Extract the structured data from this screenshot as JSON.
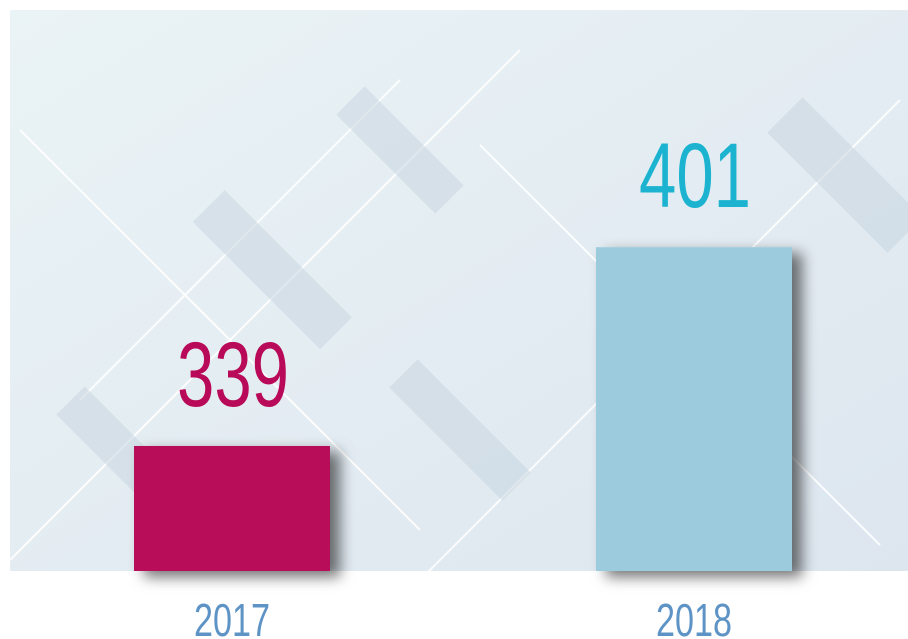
{
  "chart_data": {
    "type": "bar",
    "categories": [
      "2017",
      "2018"
    ],
    "values": [
      339,
      401
    ],
    "colors": [
      "#b80a58",
      "#9ccbdd"
    ],
    "value_label_colors": [
      "#b80a58",
      "#1bb3cf"
    ],
    "ylim": [
      300,
      475
    ]
  }
}
